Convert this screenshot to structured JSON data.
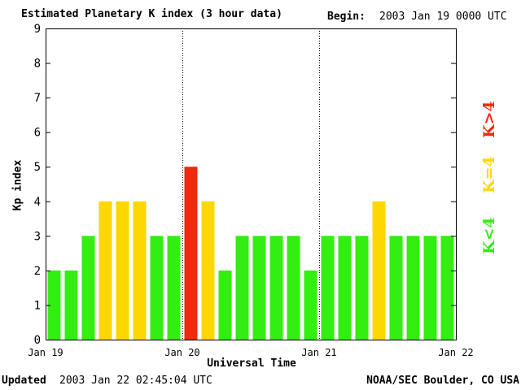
{
  "header": {
    "title": "Estimated Planetary K index (3 hour data)",
    "begin_label": "Begin:",
    "begin_value": "2003 Jan 19 0000 UTC"
  },
  "footer": {
    "updated_label": "Updated",
    "updated_value": "2003 Jan 22 02:45:04 UTC",
    "credit": "NOAA/SEC Boulder, CO USA"
  },
  "legend": {
    "low": "K<4",
    "equal": "K=4",
    "high": "K>4"
  },
  "colors": {
    "low": "#33ee11",
    "equal": "#ffd700",
    "high": "#ee2a10"
  },
  "chart_data": {
    "type": "bar",
    "title": "Estimated Planetary K index (3 hour data)",
    "xlabel": "Universal Time",
    "ylabel": "Kp index",
    "ylim": [
      0,
      9
    ],
    "yticks": [
      "0",
      "1",
      "2",
      "3",
      "4",
      "5",
      "6",
      "7",
      "8",
      "9"
    ],
    "xticks": [
      "Jan 19",
      "Jan 20",
      "Jan 21",
      "Jan 22"
    ],
    "day_dividers": [
      "Jan 20",
      "Jan 21"
    ],
    "bars_per_day": 8,
    "values": [
      2,
      2,
      3,
      4,
      4,
      4,
      3,
      3,
      5,
      4,
      2,
      3,
      3,
      3,
      3,
      2,
      3,
      3,
      3,
      4,
      3,
      3,
      3,
      3
    ]
  }
}
